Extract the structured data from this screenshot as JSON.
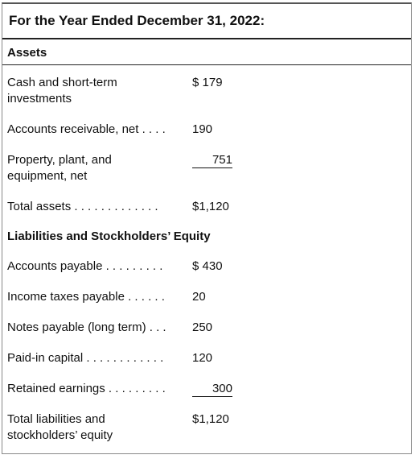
{
  "header": {
    "title": "For the Year Ended December 31, 2022:"
  },
  "sections": [
    {
      "title": "Assets",
      "rows": [
        {
          "label": [
            "Cash and short-term",
            "investments"
          ],
          "amount": "$ 179"
        },
        {
          "label": [
            "Accounts receivable, net . . . ."
          ],
          "amount": "190"
        },
        {
          "label": [
            "Property, plant, and",
            "equipment, net"
          ],
          "amount": "751",
          "underline": true
        },
        {
          "label": [
            "Total assets . . . . . . . . . . . . ."
          ],
          "amount": "$1,120"
        }
      ]
    },
    {
      "title": "Liabilities and Stockholders’ Equity",
      "rows": [
        {
          "label": [
            "Accounts payable . . . . . . . . ."
          ],
          "amount": "$ 430"
        },
        {
          "label": [
            "Income taxes payable . . . . . ."
          ],
          "amount": "20"
        },
        {
          "label": [
            "Notes payable (long term) . . ."
          ],
          "amount": "250"
        },
        {
          "label": [
            "Paid-in capital . . . . . . . . . . . ."
          ],
          "amount": "120"
        },
        {
          "label": [
            "Retained earnings . . . . . . . . ."
          ],
          "amount": "300",
          "underline": true
        },
        {
          "label": [
            "Total liabilities and",
            "stockholders’ equity"
          ],
          "amount": "$1,120"
        }
      ]
    }
  ]
}
